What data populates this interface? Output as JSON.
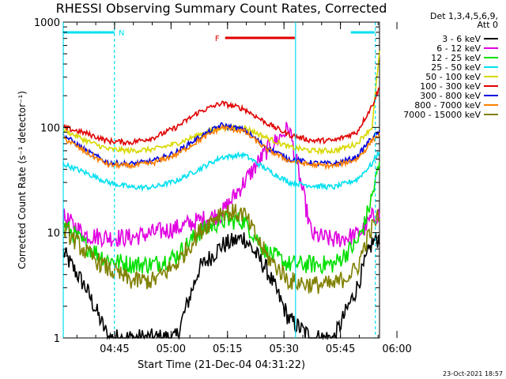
{
  "chart_data": {
    "type": "line",
    "title": "RHESSI Observing Summary Count Rates, Corrected",
    "xlabel": "Start Time (21-Dec-04 04:31:22)",
    "ylabel": "Corrected Count Rate (s⁻¹ detector⁻¹)",
    "ylog": true,
    "ylim": [
      1,
      1000
    ],
    "y_ticks": [
      1,
      10,
      100,
      1000
    ],
    "y_tick_labels": [
      "1",
      "10",
      "100",
      "1000"
    ],
    "x_range_min": [
      0,
      84
    ],
    "x_ticks_min": [
      13.63,
      28.63,
      43.63,
      58.63,
      73.63,
      88.63
    ],
    "x_tick_labels": [
      "04:45",
      "05:00",
      "05:15",
      "05:30",
      "05:45",
      "06:00"
    ],
    "legend_title": "Det 1,3,4,5,6,9, Att 0",
    "legend_title_lines": [
      "Det 1,3,4,5,6,9,",
      "Att 0"
    ],
    "legend_placement": "right",
    "timestamp": "23-Oct-2021 18:57",
    "flags": [
      {
        "label": "N",
        "color": "#00e0f0",
        "segments": [
          [
            -0.2,
            13.6
          ],
          [
            76.4,
            82.7
          ]
        ]
      },
      {
        "label": "F",
        "color": "#e00000",
        "segments": [
          [
            43.0,
            61.5
          ]
        ]
      }
    ],
    "vlines": [
      {
        "t": 0.0,
        "style": "solid",
        "color": "#00e0f0"
      },
      {
        "t": 13.6,
        "style": "dashed",
        "color": "#00e0f0"
      },
      {
        "t": 61.7,
        "style": "solid",
        "color": "#00e0f0"
      },
      {
        "t": 82.9,
        "style": "dashed",
        "color": "#00e0f0"
      }
    ],
    "x": [
      0,
      6,
      12,
      18,
      24,
      30,
      36,
      42,
      48,
      54,
      60,
      66,
      72,
      78,
      80,
      82,
      84
    ],
    "series": [
      {
        "name": "3 - 6 keV",
        "color": "#000000",
        "values": [
          6.5,
          3.0,
          1.0,
          1.0,
          1.0,
          1.0,
          4.5,
          7.5,
          9.0,
          4.5,
          1.5,
          1.0,
          1.0,
          3.0,
          5.0,
          8.0,
          9.0
        ]
      },
      {
        "name": "6 - 12 keV",
        "color": "#e000e0",
        "values": [
          14,
          9.5,
          9.0,
          9.0,
          10,
          11,
          13,
          15,
          30,
          60,
          100,
          9.5,
          8.5,
          9.5,
          11,
          14,
          15
        ]
      },
      {
        "name": "12 - 25 keV",
        "color": "#00e000",
        "values": [
          12,
          7.5,
          5.5,
          5.0,
          5.0,
          6.0,
          10,
          13,
          13,
          6.5,
          5.0,
          5.0,
          5.0,
          8.0,
          12,
          22,
          45
        ]
      },
      {
        "name": "25 - 50 keV",
        "color": "#00e0f0",
        "values": [
          45,
          37,
          30,
          27,
          27,
          31,
          40,
          52,
          55,
          40,
          30,
          28,
          27,
          32,
          38,
          45,
          60
        ]
      },
      {
        "name": "50 - 100 keV",
        "color": "#d8d800",
        "values": [
          95,
          75,
          62,
          60,
          62,
          70,
          85,
          100,
          100,
          80,
          65,
          60,
          60,
          70,
          85,
          100,
          520
        ]
      },
      {
        "name": "100 - 300 keV",
        "color": "#e00000",
        "values": [
          100,
          88,
          74,
          72,
          80,
          100,
          140,
          170,
          150,
          110,
          85,
          75,
          75,
          90,
          120,
          160,
          240
        ]
      },
      {
        "name": "300 - 800 keV",
        "color": "#0000e0",
        "values": [
          85,
          60,
          46,
          45,
          48,
          58,
          80,
          105,
          95,
          65,
          50,
          46,
          45,
          52,
          65,
          80,
          90
        ]
      },
      {
        "name": "800 - 7000 keV",
        "color": "#ff8000",
        "values": [
          80,
          58,
          44,
          43,
          46,
          55,
          75,
          100,
          92,
          62,
          48,
          44,
          43,
          50,
          60,
          75,
          85
        ]
      },
      {
        "name": "7000 - 15000 keV",
        "color": "#808000",
        "values": [
          11,
          6.5,
          4.5,
          3.5,
          3.5,
          5.0,
          10,
          16,
          15,
          6.0,
          3.5,
          3.2,
          3.2,
          4.5,
          7.5,
          11,
          15
        ]
      }
    ]
  }
}
